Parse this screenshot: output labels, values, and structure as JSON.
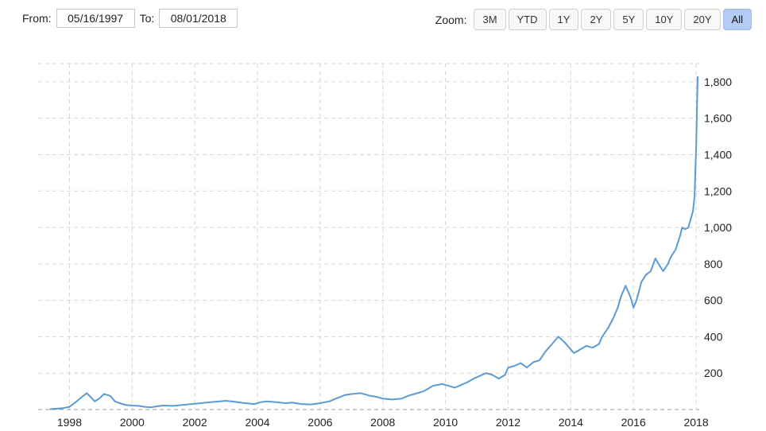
{
  "controls": {
    "from_label": "From:",
    "from_value": "05/16/1997",
    "to_label": "To:",
    "to_value": "08/01/2018",
    "zoom_label": "Zoom:",
    "zoom_buttons": [
      "3M",
      "YTD",
      "1Y",
      "2Y",
      "5Y",
      "10Y",
      "20Y",
      "All"
    ],
    "zoom_selected": "All"
  },
  "colors": {
    "line": "#5b9bd5",
    "grid": "#d6d6d6",
    "active_zoom": "#b4cbf6"
  },
  "chart_data": {
    "type": "line",
    "title": "",
    "xlabel": "",
    "ylabel": "",
    "grid": true,
    "xlim": [
      1997.0,
      2018.1
    ],
    "ylim": [
      0,
      1900
    ],
    "x_ticks": [
      1998,
      2000,
      2002,
      2004,
      2006,
      2008,
      2010,
      2012,
      2014,
      2016,
      2018
    ],
    "x_tick_labels": [
      "1998",
      "2000",
      "2002",
      "2004",
      "2006",
      "2008",
      "2010",
      "2012",
      "2014",
      "2016",
      "2018"
    ],
    "y_ticks": [
      200,
      400,
      600,
      800,
      1000,
      1200,
      1400,
      1600,
      1800
    ],
    "y_tick_labels": [
      "200",
      "400",
      "600",
      "800",
      "1,000",
      "1,200",
      "1,400",
      "1,600",
      "1,800"
    ],
    "series": [
      {
        "x": [
          1997.37,
          1997.6,
          1997.8,
          1998.0,
          1998.2,
          1998.4,
          1998.55,
          1998.7,
          1998.8,
          1998.95,
          1999.1,
          1999.3,
          1999.45,
          1999.6,
          1999.8,
          2000.0,
          2000.2,
          2000.4,
          2000.6,
          2000.8,
          2001.0,
          2001.3,
          2001.6,
          2001.9,
          2002.2,
          2002.5,
          2002.8,
          2003.0,
          2003.3,
          2003.6,
          2003.9,
          2004.1,
          2004.3,
          2004.6,
          2004.9,
          2005.1,
          2005.4,
          2005.7,
          2006.0,
          2006.3,
          2006.5,
          2006.8,
          2007.0,
          2007.3,
          2007.6,
          2007.8,
          2008.0,
          2008.3,
          2008.6,
          2008.8,
          2009.0,
          2009.3,
          2009.6,
          2009.9,
          2010.1,
          2010.3,
          2010.5,
          2010.7,
          2010.9,
          2011.1,
          2011.3,
          2011.5,
          2011.7,
          2011.9,
          2012.0,
          2012.2,
          2012.4,
          2012.6,
          2012.8,
          2013.0,
          2013.2,
          2013.4,
          2013.6,
          2013.8,
          2013.95,
          2014.1,
          2014.3,
          2014.5,
          2014.7,
          2014.9,
          2015.0,
          2015.2,
          2015.35,
          2015.5,
          2015.6,
          2015.75,
          2015.9,
          2016.0,
          2016.1,
          2016.25,
          2016.4,
          2016.55,
          2016.7,
          2016.8,
          2016.95,
          2017.1,
          2017.2,
          2017.35,
          2017.5,
          2017.55,
          2017.65,
          2017.75,
          2017.8,
          2017.9,
          2017.95,
          2018.0,
          2018.05
        ],
        "y": [
          2,
          5,
          8,
          15,
          40,
          70,
          90,
          65,
          45,
          60,
          85,
          75,
          45,
          35,
          25,
          22,
          20,
          15,
          12,
          18,
          22,
          20,
          25,
          30,
          35,
          40,
          45,
          48,
          42,
          35,
          30,
          40,
          45,
          40,
          35,
          38,
          30,
          28,
          35,
          45,
          60,
          80,
          85,
          90,
          75,
          70,
          60,
          55,
          60,
          75,
          85,
          100,
          130,
          140,
          130,
          120,
          135,
          150,
          170,
          185,
          200,
          190,
          170,
          190,
          230,
          240,
          255,
          230,
          260,
          270,
          320,
          360,
          400,
          370,
          340,
          310,
          330,
          350,
          340,
          360,
          400,
          450,
          500,
          560,
          620,
          680,
          620,
          560,
          600,
          700,
          740,
          760,
          830,
          800,
          760,
          800,
          840,
          880,
          960,
          1000,
          990,
          1000,
          1030,
          1090,
          1170,
          1440,
          1830
        ]
      }
    ]
  }
}
